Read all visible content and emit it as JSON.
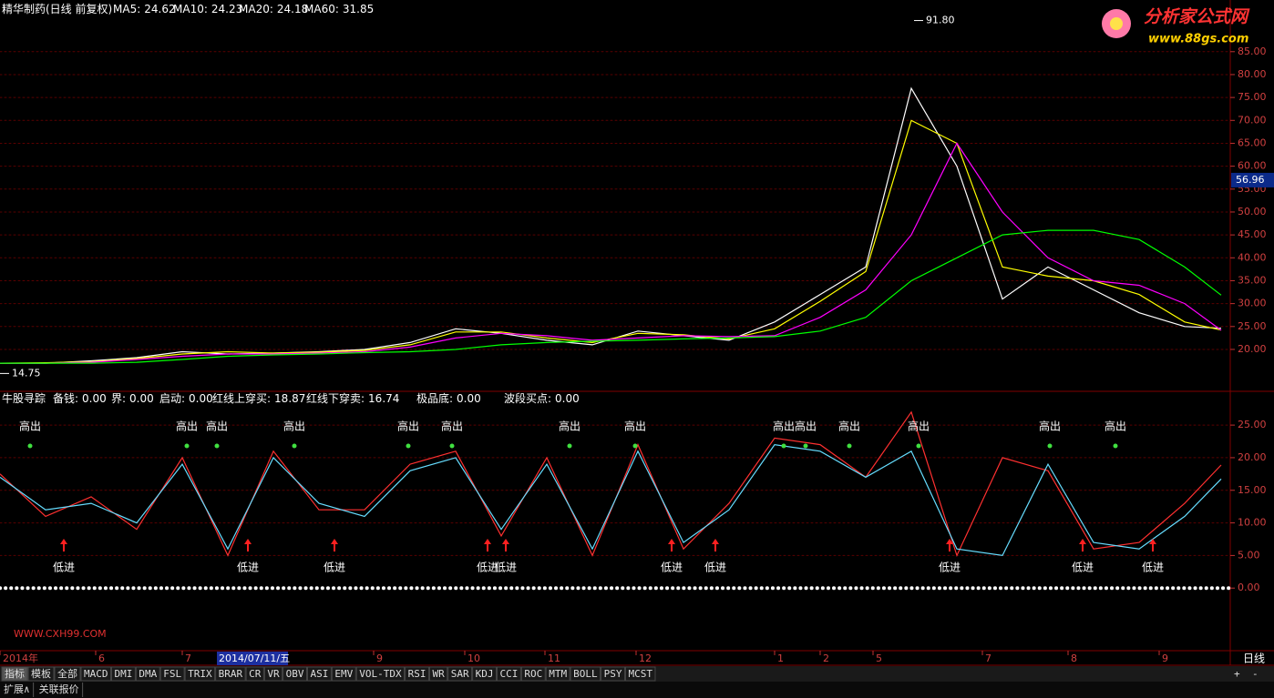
{
  "chart_data": [
    {
      "type": "line",
      "title": "精华制药(日线 前复权)",
      "x": [
        0,
        1,
        2,
        3,
        4,
        5,
        6,
        7,
        8,
        9,
        10,
        11,
        12,
        13,
        14,
        15,
        16,
        17,
        18,
        19,
        20,
        21,
        22,
        23,
        24,
        25,
        26,
        26.8
      ],
      "xlim": [
        0,
        27
      ],
      "series": [
        {
          "name": "MA5:",
          "color": "#ffffff",
          "values": [
            17,
            17,
            17.5,
            18.2,
            19.5,
            19,
            19.2,
            19.5,
            20,
            21.5,
            24.5,
            23.5,
            22,
            21,
            24,
            23,
            22,
            26,
            32,
            38,
            77,
            60,
            31,
            38,
            33,
            28,
            25,
            24.62
          ]
        },
        {
          "name": "MA10:",
          "color": "#ffff00",
          "values": [
            17,
            17.1,
            17.3,
            18,
            19,
            19.5,
            19.2,
            19.4,
            19.8,
            21,
            23.8,
            23.8,
            22.5,
            21.5,
            23.5,
            23.2,
            22.3,
            24.5,
            30.5,
            37,
            70,
            65,
            38,
            36,
            35,
            32,
            26,
            24.23
          ]
        },
        {
          "name": "MA20:",
          "color": "#ff00ff",
          "values": [
            17,
            17,
            17.2,
            17.8,
            18.5,
            19,
            19,
            19.2,
            19.5,
            20.5,
            22.5,
            23.5,
            23,
            22,
            22.5,
            23,
            22.8,
            23,
            27,
            33,
            45,
            65,
            50,
            40,
            35,
            34,
            30,
            24.18
          ]
        },
        {
          "name": "MA60:",
          "color": "#00ff00",
          "values": [
            17,
            17,
            17,
            17.2,
            17.8,
            18.5,
            18.8,
            19,
            19.3,
            19.5,
            20,
            21,
            21.5,
            21.8,
            22,
            22.3,
            22.5,
            22.8,
            24,
            27,
            35,
            40,
            45,
            46,
            46,
            44,
            38,
            31.85
          ]
        }
      ],
      "ylim": [
        11.25,
        93.5
      ],
      "yticks": [
        {
          "value": 20,
          "label": "20.00"
        },
        {
          "value": 25,
          "label": "25.00"
        },
        {
          "value": 30,
          "label": "30.00"
        },
        {
          "value": 35,
          "label": "35.00"
        },
        {
          "value": 40,
          "label": "40.00"
        },
        {
          "value": 45,
          "label": "45.00"
        },
        {
          "value": 50,
          "label": "50.00"
        },
        {
          "value": 55,
          "label": "55.00"
        },
        {
          "value": 60,
          "label": "60.00"
        },
        {
          "value": 65,
          "label": "65.00"
        },
        {
          "value": 70,
          "label": "70.00"
        },
        {
          "value": 75,
          "label": "75.00"
        },
        {
          "value": 80,
          "label": "80.00"
        },
        {
          "value": 85,
          "label": "85.00"
        }
      ],
      "grid": true,
      "last_price": 56.96,
      "annotations": [
        {
          "x": 20.06,
          "value": 91.8,
          "label": "91.80"
        },
        {
          "x": 0,
          "value": 14.75,
          "label": "14.75"
        }
      ]
    },
    {
      "type": "line",
      "title": "牛股寻踪",
      "header": [
        {
          "name": "备钱:",
          "value": "0.00",
          "color": "#ffffff"
        },
        {
          "name": "界:",
          "value": "0.00",
          "color": "#ffffff"
        },
        {
          "name": "启动:",
          "value": "0.00",
          "color": "#ff3030"
        },
        {
          "name": "极品底:",
          "value": "0.00",
          "color": "#ff30ff"
        },
        {
          "name": "波段买点:",
          "value": "0.00",
          "color": "#ffffff"
        }
      ],
      "x": [
        0,
        1,
        2,
        3,
        4,
        5,
        6,
        7,
        8,
        9,
        10,
        11,
        12,
        13,
        14,
        15,
        16,
        17,
        18,
        19,
        20,
        21,
        22,
        23,
        24,
        25,
        26,
        26.8
      ],
      "xlim": [
        0,
        27
      ],
      "series": [
        {
          "name": "红线上穿买:",
          "color": "#ff3030",
          "values": [
            17.5,
            11,
            14,
            9,
            20,
            5,
            21,
            12,
            12,
            19,
            21,
            8,
            20,
            5,
            22,
            6,
            13,
            23,
            22,
            17,
            27,
            5,
            20,
            18,
            6,
            7,
            13,
            18.87
          ]
        },
        {
          "name": "红线下穿卖:",
          "color": "#66ddff",
          "values": [
            17,
            12,
            13,
            10,
            19,
            6,
            20,
            13,
            11,
            18,
            20,
            9,
            19,
            6,
            21,
            7,
            12,
            22,
            21,
            17,
            21,
            6,
            5,
            19,
            7,
            6,
            11,
            16.74
          ]
        }
      ],
      "ylim": [
        -9.6,
        29.9
      ],
      "yticks": [
        {
          "value": 0,
          "label": "0.00"
        },
        {
          "value": 5,
          "label": "5.00"
        },
        {
          "value": 10,
          "label": "10.00"
        },
        {
          "value": 15,
          "label": "15.00"
        },
        {
          "value": 20,
          "label": "20.00"
        },
        {
          "value": 25,
          "label": "25.00"
        }
      ],
      "sell_signals": {
        "label": "高出",
        "x": [
          0.66,
          4.1,
          4.76,
          6.46,
          8.96,
          9.92,
          12.5,
          13.94,
          17.2,
          17.68,
          18.64,
          20.16,
          23.04,
          24.48
        ]
      },
      "buy_signals": {
        "label": "低进",
        "x": [
          1.4,
          5.44,
          7.34,
          10.7,
          11.1,
          14.74,
          15.7,
          20.84,
          23.76,
          25.3
        ]
      },
      "xticks": [
        {
          "value": 0,
          "label": "2014年"
        },
        {
          "value": 2.1,
          "label": "6"
        },
        {
          "value": 4,
          "label": "7"
        },
        {
          "value": 8.2,
          "label": "9"
        },
        {
          "value": 10.2,
          "label": "10"
        },
        {
          "value": 11.96,
          "label": "11"
        },
        {
          "value": 13.96,
          "label": "12"
        },
        {
          "value": 17,
          "label": "1"
        },
        {
          "value": 18,
          "label": "2"
        },
        {
          "value": 19.16,
          "label": "5"
        },
        {
          "value": 21.56,
          "label": "7"
        },
        {
          "value": 23.44,
          "label": "8"
        },
        {
          "value": 25.44,
          "label": "9"
        }
      ],
      "cursor": {
        "value": 4.76,
        "label": "2014/07/11/五"
      },
      "period": "日线"
    }
  ],
  "watermark": "WWW.CXH99.COM",
  "logo": {
    "name": "分析家公式网",
    "url": "www.88gs.com"
  },
  "toolbar": [
    "指标",
    "模板",
    "全部",
    "MACD",
    "DMI",
    "DMA",
    "FSL",
    "TRIX",
    "BRAR",
    "CR",
    "VR",
    "OBV",
    "ASI",
    "EMV",
    "VOL-TDX",
    "RSI",
    "WR",
    "SAR",
    "KDJ",
    "CCI",
    "ROC",
    "MTM",
    "BOLL",
    "PSY",
    "MCST"
  ],
  "toolbar_buttons": [
    "+",
    "-"
  ],
  "bottom_tabs": [
    "扩展∧",
    "关联报价"
  ]
}
